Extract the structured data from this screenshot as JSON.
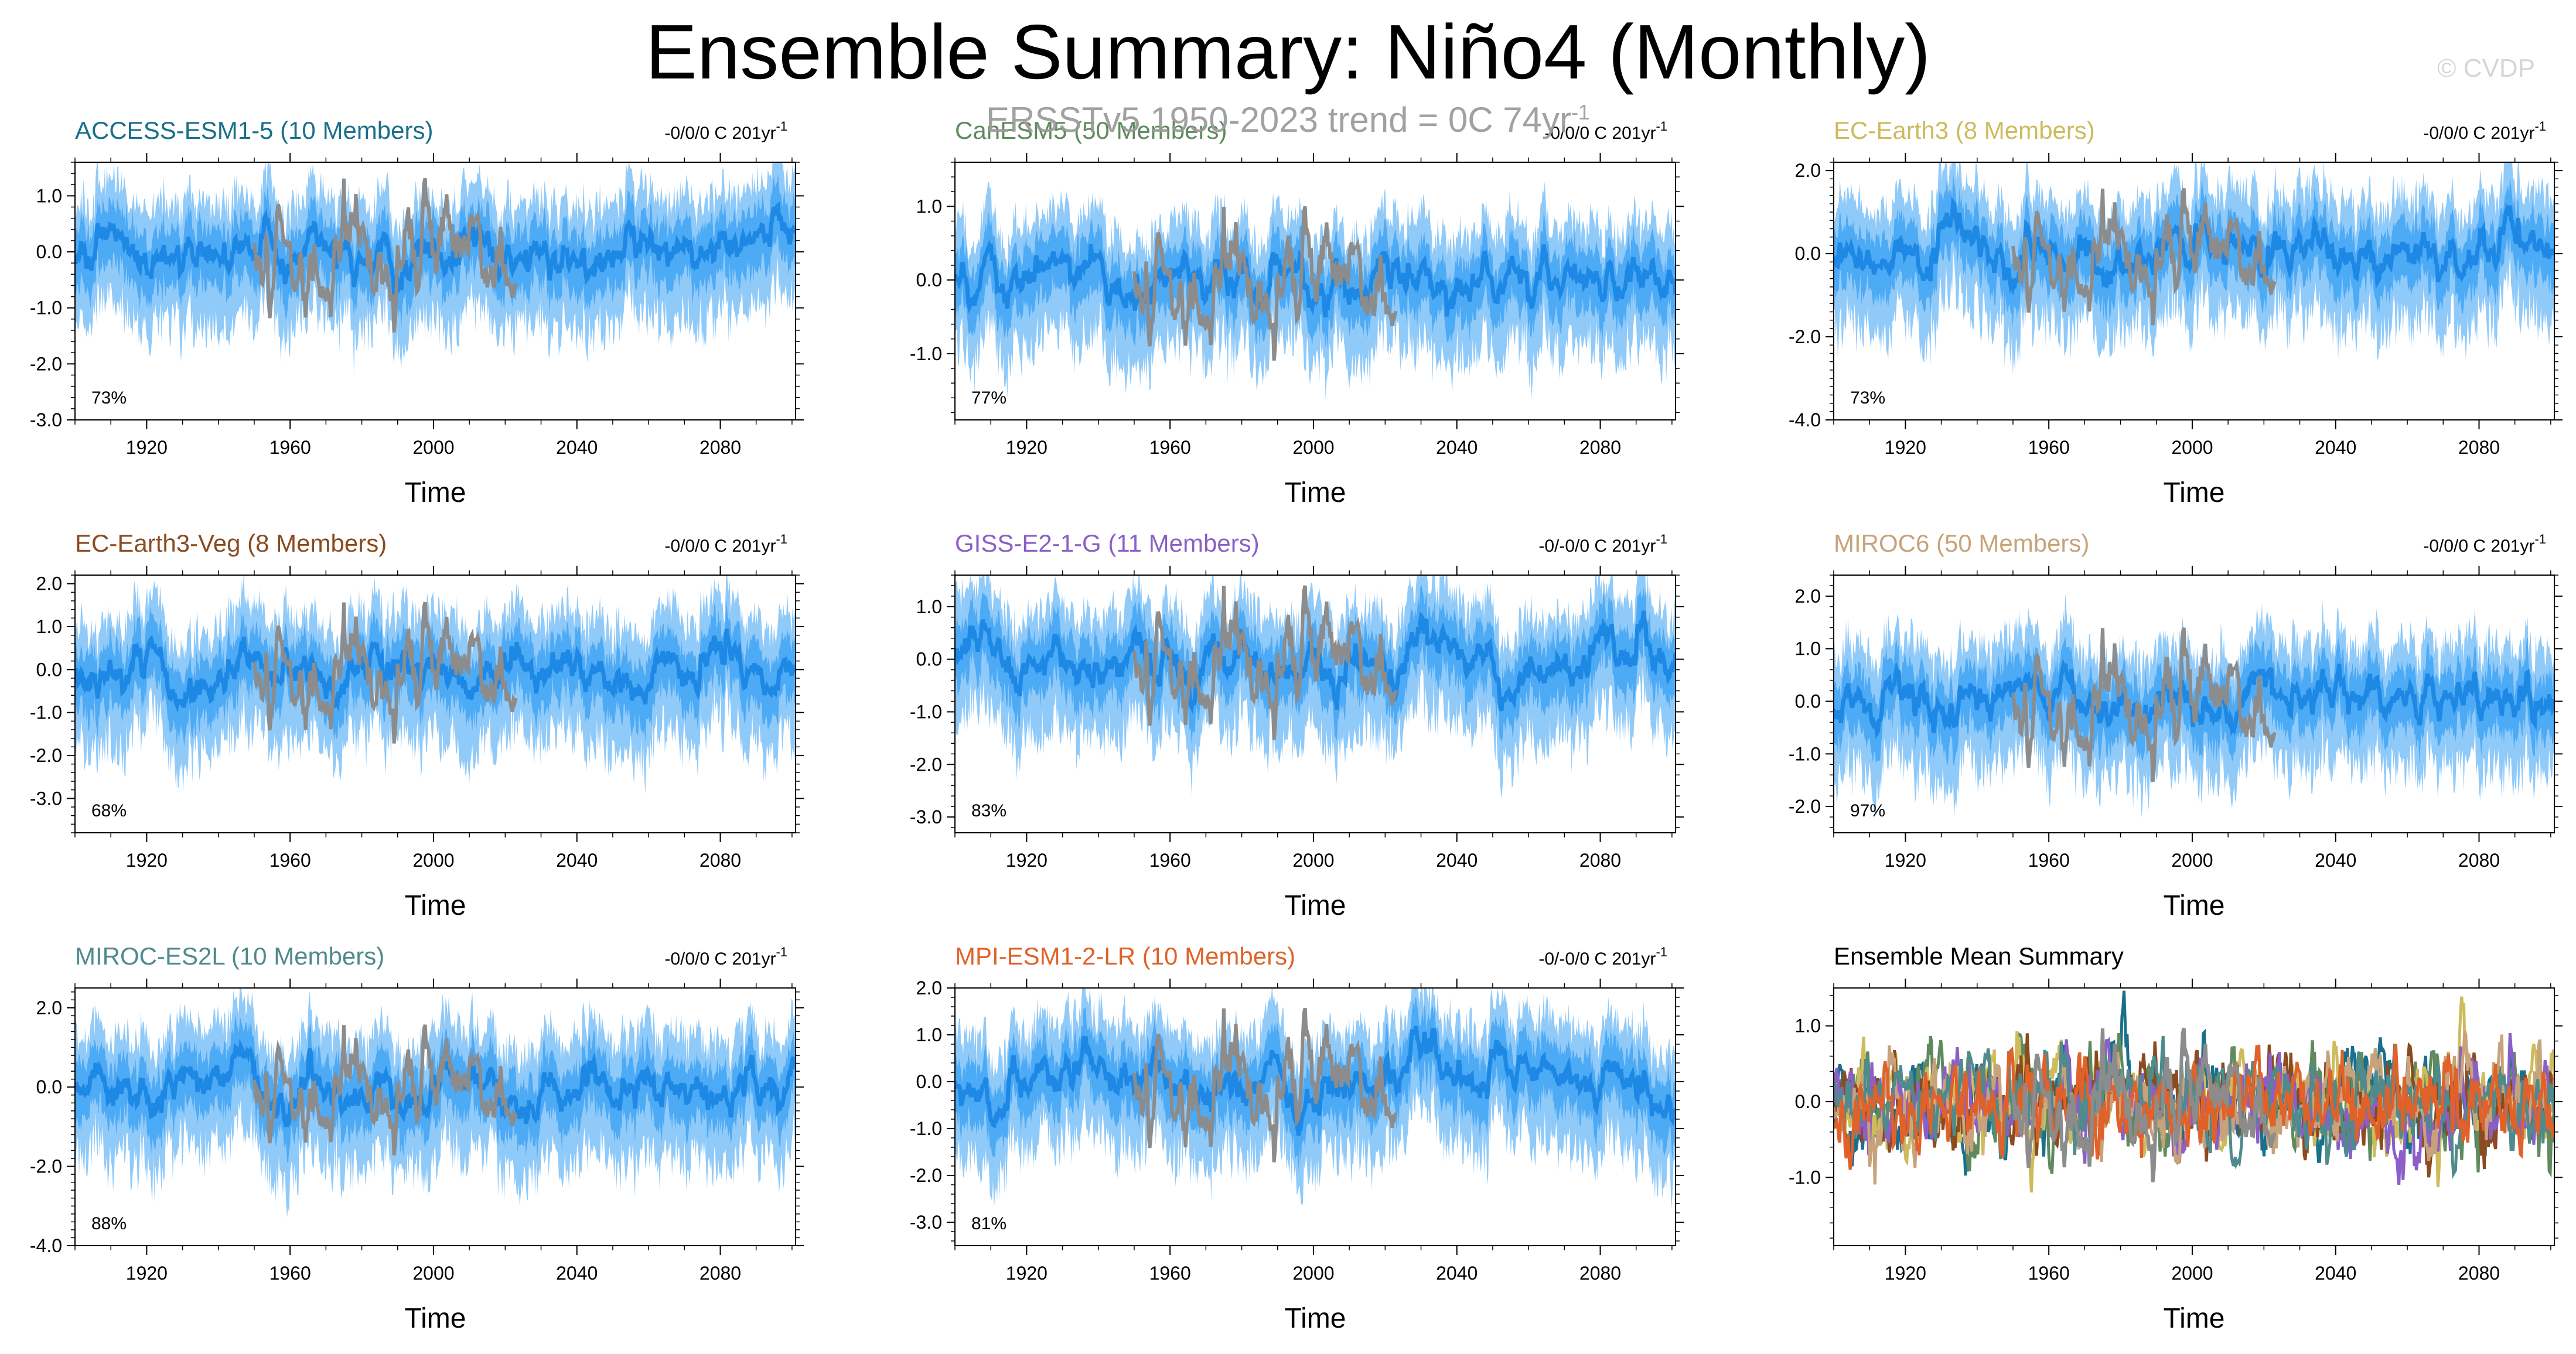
{
  "title": "Ensemble Summary: Niño4 (Monthly)",
  "watermark": "© CVDP",
  "obs_trend_label": "ERSSTv5 1950-2023 trend = 0C 74yr",
  "obs_trend_superscript": "-1",
  "colors": {
    "ensemble_mean": "#1e88e5",
    "ensemble_inner": "#42a5f5",
    "ensemble_outer": "#90caf9",
    "observations": "#8c8c8c"
  },
  "chart_data": [
    {
      "type": "line",
      "title": "ACCESS-ESM1-5 (10 Members)",
      "title_color": "#1a6f8a",
      "trend_text": "-0/0/0 C 201yr",
      "trend_sup": "-1",
      "percent": "73%",
      "xlabel": "Time",
      "xticks": [
        "1920",
        "1960",
        "2000",
        "2040",
        "2080"
      ],
      "xlim": [
        1900,
        2101
      ],
      "ylim": [
        -3.0,
        1.6
      ],
      "yticks": [
        "1.0",
        "0.0",
        "-1.0",
        "-2.0",
        "-3.0"
      ],
      "ytick_values": [
        1,
        0,
        -1,
        -2,
        -3
      ],
      "obs_range": [
        1950,
        2023
      ],
      "series": [
        "ensemble range",
        "ensemble mean",
        "ERSSTv5 observations"
      ]
    },
    {
      "type": "line",
      "title": "CanESM5 (50 Members)",
      "title_color": "#5e8a5e",
      "trend_text": "-0/0/0 C 201yr",
      "trend_sup": "-1",
      "percent": "77%",
      "xlabel": "Time",
      "xticks": [
        "1920",
        "1960",
        "2000",
        "2040",
        "2080"
      ],
      "xlim": [
        1900,
        2101
      ],
      "ylim": [
        -1.9,
        1.6
      ],
      "yticks": [
        "1.0",
        "0.0",
        "-1.0"
      ],
      "ytick_values": [
        1,
        0,
        -1
      ],
      "obs_range": [
        1950,
        2023
      ],
      "series": [
        "ensemble range",
        "ensemble mean",
        "ERSSTv5 observations"
      ]
    },
    {
      "type": "line",
      "title": "EC-Earth3 (8 Members)",
      "title_color": "#cdbb5d",
      "trend_text": "-0/0/0 C 201yr",
      "trend_sup": "-1",
      "percent": "73%",
      "xlabel": "Time",
      "xticks": [
        "1920",
        "1960",
        "2000",
        "2040",
        "2080"
      ],
      "xlim": [
        1900,
        2101
      ],
      "ylim": [
        -4.0,
        2.2
      ],
      "yticks": [
        "2.0",
        "0.0",
        "-2.0",
        "-4.0"
      ],
      "ytick_values": [
        2,
        0,
        -2,
        -4
      ],
      "obs_range": [
        1950,
        2023
      ],
      "series": [
        "ensemble range",
        "ensemble mean",
        "ERSSTv5 observations"
      ]
    },
    {
      "type": "line",
      "title": "EC-Earth3-Veg (8 Members)",
      "title_color": "#8b4a1f",
      "trend_text": "-0/0/0 C 201yr",
      "trend_sup": "-1",
      "percent": "68%",
      "xlabel": "Time",
      "xticks": [
        "1920",
        "1960",
        "2000",
        "2040",
        "2080"
      ],
      "xlim": [
        1900,
        2101
      ],
      "ylim": [
        -3.8,
        2.2
      ],
      "yticks": [
        "2.0",
        "1.0",
        "0.0",
        "-1.0",
        "-2.0",
        "-3.0"
      ],
      "ytick_values": [
        2,
        1,
        0,
        -1,
        -2,
        -3
      ],
      "obs_range": [
        1950,
        2023
      ],
      "series": [
        "ensemble range",
        "ensemble mean",
        "ERSSTv5 observations"
      ]
    },
    {
      "type": "line",
      "title": "GISS-E2-1-G (11 Members)",
      "title_color": "#8a5fc8",
      "trend_text": "-0/-0/0 C 201yr",
      "trend_sup": "-1",
      "percent": "83%",
      "xlabel": "Time",
      "xticks": [
        "1920",
        "1960",
        "2000",
        "2040",
        "2080"
      ],
      "xlim": [
        1900,
        2101
      ],
      "ylim": [
        -3.3,
        1.6
      ],
      "yticks": [
        "1.0",
        "0.0",
        "-1.0",
        "-2.0",
        "-3.0"
      ],
      "ytick_values": [
        1,
        0,
        -1,
        -2,
        -3
      ],
      "obs_range": [
        1950,
        2023
      ],
      "series": [
        "ensemble range",
        "ensemble mean",
        "ERSSTv5 observations"
      ]
    },
    {
      "type": "line",
      "title": "MIROC6 (50 Members)",
      "title_color": "#c8a27a",
      "trend_text": "-0/0/0 C 201yr",
      "trend_sup": "-1",
      "percent": "97%",
      "xlabel": "Time",
      "xticks": [
        "1920",
        "1960",
        "2000",
        "2040",
        "2080"
      ],
      "xlim": [
        1900,
        2101
      ],
      "ylim": [
        -2.5,
        2.4
      ],
      "yticks": [
        "2.0",
        "1.0",
        "0.0",
        "-1.0",
        "-2.0"
      ],
      "ytick_values": [
        2,
        1,
        0,
        -1,
        -2
      ],
      "obs_range": [
        1950,
        2023
      ],
      "series": [
        "ensemble range",
        "ensemble mean",
        "ERSSTv5 observations"
      ]
    },
    {
      "type": "line",
      "title": "MIROC-ES2L (10 Members)",
      "title_color": "#4f8a8c",
      "trend_text": "-0/0/0 C 201yr",
      "trend_sup": "-1",
      "percent": "88%",
      "xlabel": "Time",
      "xticks": [
        "1920",
        "1960",
        "2000",
        "2040",
        "2080"
      ],
      "xlim": [
        1900,
        2101
      ],
      "ylim": [
        -4.0,
        2.5
      ],
      "yticks": [
        "2.0",
        "0.0",
        "-2.0",
        "-4.0"
      ],
      "ytick_values": [
        2,
        0,
        -2,
        -4
      ],
      "obs_range": [
        1950,
        2023
      ],
      "series": [
        "ensemble range",
        "ensemble mean",
        "ERSSTv5 observations"
      ]
    },
    {
      "type": "line",
      "title": "MPI-ESM1-2-LR (10 Members)",
      "title_color": "#e0622a",
      "trend_text": "-0/-0/0 C 201yr",
      "trend_sup": "-1",
      "percent": "81%",
      "xlabel": "Time",
      "xticks": [
        "1920",
        "1960",
        "2000",
        "2040",
        "2080"
      ],
      "xlim": [
        1900,
        2101
      ],
      "ylim": [
        -3.5,
        2.0
      ],
      "yticks": [
        "2.0",
        "1.0",
        "0.0",
        "-1.0",
        "-2.0",
        "-3.0"
      ],
      "ytick_values": [
        2,
        1,
        0,
        -1,
        -2,
        -3
      ],
      "obs_range": [
        1950,
        2023
      ],
      "series": [
        "ensemble range",
        "ensemble mean",
        "ERSSTv5 observations"
      ]
    },
    {
      "type": "line",
      "title": "Ensemble Mean Summary",
      "title_color": "#000000",
      "trend_text": "",
      "trend_sup": "",
      "percent": "",
      "xlabel": "Time",
      "xticks": [
        "1920",
        "1960",
        "2000",
        "2040",
        "2080"
      ],
      "xlim": [
        1900,
        2101
      ],
      "ylim": [
        -1.9,
        1.5
      ],
      "yticks": [
        "1.0",
        "0.0",
        "-1.0"
      ],
      "ytick_values": [
        1,
        0,
        -1
      ],
      "obs_range": [
        1950,
        2023
      ],
      "series": [
        "ACCESS-ESM1-5",
        "CanESM5",
        "EC-Earth3",
        "EC-Earth3-Veg",
        "GISS-E2-1-G",
        "MIROC6",
        "MIROC-ES2L",
        "MPI-ESM1-2-LR",
        "ERSSTv5 observations"
      ]
    }
  ]
}
